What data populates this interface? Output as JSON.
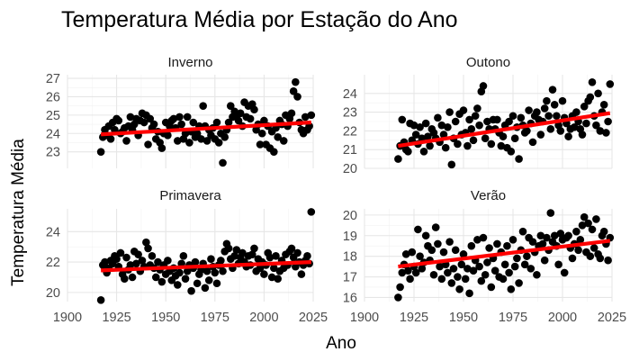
{
  "chart_data": {
    "type": "scatter",
    "title": "Temperatura Média por Estação do Ano",
    "xlabel": "Ano",
    "ylabel": "Temperatura Média",
    "xlim": [
      1900,
      2025
    ],
    "xticks": [
      1900,
      1925,
      1950,
      1975,
      2000,
      2025
    ],
    "grid": true,
    "legend": "none",
    "fit_color": "#ff0000",
    "point_color": "#000000",
    "panels": [
      {
        "name": "Inverno",
        "ylim": [
          22.1,
          27.2
        ],
        "yticks": [
          23,
          24,
          25,
          26,
          27
        ],
        "fit": {
          "x": [
            1917,
            2024
          ],
          "y": [
            23.95,
            24.6
          ]
        },
        "x": [
          1917,
          1918,
          1919,
          1920,
          1921,
          1922,
          1923,
          1924,
          1925,
          1926,
          1927,
          1928,
          1929,
          1930,
          1931,
          1932,
          1933,
          1934,
          1935,
          1936,
          1937,
          1938,
          1939,
          1940,
          1941,
          1942,
          1943,
          1944,
          1945,
          1946,
          1947,
          1948,
          1949,
          1950,
          1951,
          1952,
          1953,
          1954,
          1955,
          1956,
          1957,
          1958,
          1959,
          1960,
          1961,
          1962,
          1963,
          1964,
          1965,
          1966,
          1967,
          1968,
          1969,
          1970,
          1971,
          1972,
          1973,
          1974,
          1975,
          1976,
          1977,
          1978,
          1979,
          1980,
          1981,
          1982,
          1983,
          1984,
          1985,
          1986,
          1987,
          1988,
          1989,
          1990,
          1991,
          1992,
          1993,
          1994,
          1995,
          1996,
          1997,
          1998,
          1999,
          2000,
          2001,
          2002,
          2003,
          2004,
          2005,
          2006,
          2007,
          2008,
          2009,
          2010,
          2011,
          2012,
          2013,
          2014,
          2015,
          2016,
          2017,
          2018,
          2019,
          2020,
          2021,
          2022,
          2023,
          2024
        ],
        "y": [
          23.0,
          23.8,
          24.2,
          23.9,
          24.4,
          23.7,
          24.6,
          24.2,
          24.8,
          24.7,
          24.0,
          24.1,
          24.3,
          23.6,
          24.4,
          24.9,
          24.2,
          24.5,
          24.8,
          23.9,
          24.7,
          25.1,
          24.6,
          25.0,
          23.4,
          24.8,
          24.3,
          24.5,
          23.7,
          24.1,
          23.5,
          23.2,
          24.0,
          24.6,
          23.9,
          24.4,
          24.7,
          24.8,
          24.3,
          23.6,
          24.9,
          24.5,
          23.7,
          24.0,
          24.9,
          23.5,
          24.1,
          24.6,
          23.8,
          24.0,
          24.4,
          23.7,
          25.5,
          24.4,
          23.6,
          24.2,
          23.9,
          24.3,
          23.7,
          24.6,
          23.5,
          24.0,
          22.4,
          23.8,
          24.2,
          24.6,
          25.5,
          24.9,
          25.2,
          25.0,
          24.7,
          25.1,
          24.4,
          25.7,
          24.9,
          25.5,
          24.8,
          25.6,
          25.3,
          24.2,
          24.5,
          23.4,
          24.0,
          24.7,
          23.4,
          24.4,
          23.2,
          24.1,
          23.0,
          24.3,
          23.8,
          24.7,
          24.5,
          23.6,
          25.0,
          24.4,
          24.8,
          25.1,
          26.3,
          26.8,
          26.0,
          24.6,
          24.2,
          24.0,
          24.9,
          24.2,
          24.4,
          25.0
        ]
      },
      {
        "name": "Outono",
        "ylim": [
          20.0,
          25.0
        ],
        "yticks": [
          20,
          21,
          22,
          23,
          24
        ],
        "fit": {
          "x": [
            1917,
            2024
          ],
          "y": [
            21.2,
            22.95
          ]
        },
        "x": [
          1917,
          1918,
          1919,
          1920,
          1921,
          1922,
          1923,
          1924,
          1925,
          1926,
          1927,
          1928,
          1929,
          1930,
          1931,
          1932,
          1933,
          1934,
          1935,
          1936,
          1937,
          1938,
          1939,
          1940,
          1941,
          1942,
          1943,
          1944,
          1945,
          1946,
          1947,
          1948,
          1949,
          1950,
          1951,
          1952,
          1953,
          1954,
          1955,
          1956,
          1957,
          1958,
          1959,
          1960,
          1961,
          1962,
          1963,
          1964,
          1965,
          1966,
          1967,
          1968,
          1969,
          1970,
          1971,
          1972,
          1973,
          1974,
          1975,
          1976,
          1977,
          1978,
          1979,
          1980,
          1981,
          1982,
          1983,
          1984,
          1985,
          1986,
          1987,
          1988,
          1989,
          1990,
          1991,
          1992,
          1993,
          1994,
          1995,
          1996,
          1997,
          1998,
          1999,
          2000,
          2001,
          2002,
          2003,
          2004,
          2005,
          2006,
          2007,
          2008,
          2009,
          2010,
          2011,
          2012,
          2013,
          2014,
          2015,
          2016,
          2017,
          2018,
          2019,
          2020,
          2021,
          2022,
          2023,
          2024
        ],
        "y": [
          20.5,
          21.2,
          22.6,
          21.4,
          21.0,
          20.9,
          22.4,
          21.5,
          22.3,
          21.8,
          21.3,
          22.2,
          21.6,
          20.9,
          22.4,
          21.7,
          21.2,
          22.1,
          21.9,
          21.6,
          22.7,
          21.4,
          22.3,
          21.8,
          21.1,
          22.2,
          23.0,
          20.2,
          21.6,
          22.5,
          21.3,
          22.9,
          21.8,
          23.1,
          21.9,
          21.2,
          22.6,
          22.1,
          21.5,
          22.8,
          23.2,
          22.3,
          24.1,
          24.4,
          21.6,
          22.5,
          22.1,
          21.3,
          22.6,
          22.1,
          22.6,
          21.9,
          21.2,
          21.7,
          22.3,
          21.1,
          22.5,
          20.9,
          22.8,
          21.6,
          22.2,
          20.5,
          22.7,
          22.3,
          21.9,
          22.0,
          23.1,
          22.4,
          21.4,
          22.8,
          23.0,
          22.6,
          21.8,
          22.5,
          23.2,
          23.6,
          22.8,
          22.1,
          24.2,
          23.4,
          22.8,
          22.3,
          22.0,
          23.6,
          22.7,
          22.4,
          21.7,
          22.1,
          22.8,
          22.2,
          23.0,
          22.5,
          22.1,
          21.8,
          23.3,
          22.4,
          23.6,
          23.8,
          24.6,
          22.8,
          22.3,
          24.0,
          22.0,
          23.0,
          23.4,
          21.9,
          22.5,
          24.5
        ]
      },
      {
        "name": "Primavera",
        "ylim": [
          19.4,
          25.5
        ],
        "yticks": [
          20,
          22,
          24
        ],
        "fit": {
          "x": [
            1917,
            2024
          ],
          "y": [
            21.45,
            22.0
          ]
        },
        "x": [
          1917,
          1918,
          1919,
          1920,
          1921,
          1922,
          1923,
          1924,
          1925,
          1926,
          1927,
          1928,
          1929,
          1930,
          1931,
          1932,
          1933,
          1934,
          1935,
          1936,
          1937,
          1938,
          1939,
          1940,
          1941,
          1942,
          1943,
          1944,
          1945,
          1946,
          1947,
          1948,
          1949,
          1950,
          1951,
          1952,
          1953,
          1954,
          1955,
          1956,
          1957,
          1958,
          1959,
          1960,
          1961,
          1962,
          1963,
          1964,
          1965,
          1966,
          1967,
          1968,
          1969,
          1970,
          1971,
          1972,
          1973,
          1974,
          1975,
          1976,
          1977,
          1978,
          1979,
          1980,
          1981,
          1982,
          1983,
          1984,
          1985,
          1986,
          1987,
          1988,
          1989,
          1990,
          1991,
          1992,
          1993,
          1994,
          1995,
          1996,
          1997,
          1998,
          1999,
          2000,
          2001,
          2002,
          2003,
          2004,
          2005,
          2006,
          2007,
          2008,
          2009,
          2010,
          2011,
          2012,
          2013,
          2014,
          2015,
          2016,
          2017,
          2018,
          2019,
          2020,
          2021,
          2022,
          2023,
          2024
        ],
        "y": [
          19.5,
          21.8,
          22.0,
          21.3,
          21.6,
          22.1,
          21.9,
          22.4,
          22.2,
          21.7,
          22.6,
          21.2,
          20.9,
          22.3,
          21.5,
          21.8,
          21.0,
          22.7,
          21.9,
          22.5,
          21.4,
          22.1,
          21.7,
          23.3,
          22.9,
          21.8,
          22.4,
          21.6,
          21.0,
          22.0,
          21.5,
          20.7,
          21.8,
          21.2,
          22.1,
          21.4,
          20.8,
          21.6,
          21.1,
          20.5,
          21.3,
          21.9,
          22.4,
          20.9,
          21.4,
          21.8,
          20.1,
          21.6,
          22.0,
          20.6,
          21.2,
          21.5,
          21.9,
          20.3,
          21.4,
          20.8,
          22.2,
          21.7,
          21.3,
          20.6,
          21.8,
          22.1,
          21.4,
          22.7,
          23.2,
          22.9,
          22.2,
          21.6,
          22.4,
          22.8,
          21.9,
          22.3,
          22.6,
          22.0,
          21.7,
          22.4,
          21.8,
          22.5,
          22.9,
          21.4,
          22.2,
          21.6,
          22.0,
          21.2,
          21.8,
          22.6,
          22.3,
          21.0,
          21.6,
          22.4,
          20.9,
          21.4,
          22.1,
          21.6,
          22.5,
          21.8,
          22.7,
          22.9,
          22.3,
          21.7,
          22.6,
          22.0,
          21.2,
          21.8,
          22.1,
          22.4,
          21.9,
          25.3
        ]
      },
      {
        "name": "Verão",
        "ylim": [
          15.8,
          20.3
        ],
        "yticks": [
          16,
          17,
          18,
          19,
          20
        ],
        "fit": {
          "x": [
            1917,
            2024
          ],
          "y": [
            17.5,
            18.75
          ]
        },
        "x": [
          1917,
          1918,
          1919,
          1920,
          1921,
          1922,
          1923,
          1924,
          1925,
          1926,
          1927,
          1928,
          1929,
          1930,
          1931,
          1932,
          1933,
          1934,
          1935,
          1936,
          1937,
          1938,
          1939,
          1940,
          1941,
          1942,
          1943,
          1944,
          1945,
          1946,
          1947,
          1948,
          1949,
          1950,
          1951,
          1952,
          1953,
          1954,
          1955,
          1956,
          1957,
          1958,
          1959,
          1960,
          1961,
          1962,
          1963,
          1964,
          1965,
          1966,
          1967,
          1968,
          1969,
          1970,
          1971,
          1972,
          1973,
          1974,
          1975,
          1976,
          1977,
          1978,
          1979,
          1980,
          1981,
          1982,
          1983,
          1984,
          1985,
          1986,
          1987,
          1988,
          1989,
          1990,
          1991,
          1992,
          1993,
          1994,
          1995,
          1996,
          1997,
          1998,
          1999,
          2000,
          2001,
          2002,
          2003,
          2004,
          2005,
          2006,
          2007,
          2008,
          2009,
          2010,
          2011,
          2012,
          2013,
          2014,
          2015,
          2016,
          2017,
          2018,
          2019,
          2020,
          2021,
          2022,
          2023,
          2024
        ],
        "y": [
          16.0,
          16.5,
          17.2,
          17.6,
          18.1,
          17.3,
          16.9,
          18.2,
          17.5,
          17.2,
          19.3,
          18.0,
          17.4,
          17.7,
          19.0,
          18.5,
          17.8,
          18.3,
          17.1,
          19.4,
          18.6,
          17.5,
          16.9,
          18.2,
          17.6,
          17.2,
          18.7,
          16.7,
          17.4,
          18.3,
          17.0,
          16.4,
          17.6,
          18.1,
          16.9,
          17.4,
          16.2,
          18.5,
          17.3,
          17.8,
          18.8,
          17.5,
          16.8,
          18.9,
          17.1,
          17.7,
          18.4,
          16.5,
          17.9,
          17.3,
          18.6,
          17.0,
          18.2,
          16.9,
          17.6,
          18.5,
          17.2,
          16.4,
          18.8,
          17.5,
          17.9,
          16.7,
          18.3,
          19.2,
          17.6,
          18.0,
          18.9,
          17.4,
          18.7,
          18.2,
          17.1,
          18.5,
          19.0,
          18.6,
          17.8,
          18.9,
          18.3,
          20.1,
          18.7,
          19.0,
          18.5,
          17.6,
          19.1,
          18.8,
          17.2,
          18.9,
          19.0,
          18.4,
          17.9,
          18.6,
          19.2,
          18.3,
          18.8,
          19.5,
          19.9,
          18.2,
          19.6,
          18.0,
          19.3,
          18.4,
          19.8,
          18.1,
          17.9,
          19.0,
          19.2,
          18.6,
          17.8,
          18.9
        ]
      }
    ]
  }
}
